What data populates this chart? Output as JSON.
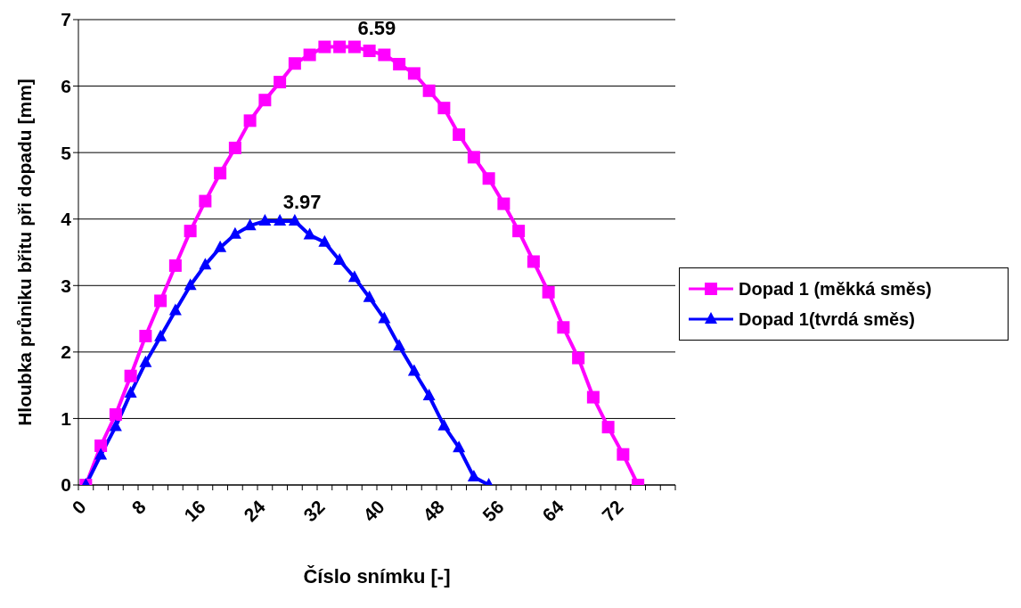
{
  "chart_data": {
    "type": "line",
    "xlabel": "Číslo snímku [-]",
    "ylabel": "Hloubka průniku břitu při dopadu [mm]",
    "xlim": [
      0,
      80
    ],
    "xticks": [
      0,
      {
        "value": 2,
        "label": null
      },
      {
        "value": 4,
        "label": null
      },
      {
        "value": 6,
        "label": null
      },
      8,
      {
        "value": 10,
        "label": null
      },
      {
        "value": 12,
        "label": null
      },
      {
        "value": 14,
        "label": null
      },
      16,
      {
        "value": 18,
        "label": null
      },
      {
        "value": 20,
        "label": null
      },
      {
        "value": 22,
        "label": null
      },
      24,
      {
        "value": 26,
        "label": null
      },
      {
        "value": 28,
        "label": null
      },
      {
        "value": 30,
        "label": null
      },
      32,
      {
        "value": 34,
        "label": null
      },
      {
        "value": 36,
        "label": null
      },
      {
        "value": 38,
        "label": null
      },
      40,
      {
        "value": 42,
        "label": null
      },
      {
        "value": 44,
        "label": null
      },
      {
        "value": 46,
        "label": null
      },
      48,
      {
        "value": 50,
        "label": null
      },
      {
        "value": 52,
        "label": null
      },
      {
        "value": 54,
        "label": null
      },
      56,
      {
        "value": 58,
        "label": null
      },
      {
        "value": 60,
        "label": null
      },
      {
        "value": 62,
        "label": null
      },
      64,
      {
        "value": 66,
        "label": null
      },
      {
        "value": 68,
        "label": null
      },
      {
        "value": 70,
        "label": null
      },
      72,
      {
        "value": 74,
        "label": null
      },
      {
        "value": 76,
        "label": null
      },
      {
        "value": 78,
        "label": null
      },
      {
        "value": 80,
        "label": null
      }
    ],
    "ylim": [
      0,
      7
    ],
    "yticks": [
      0,
      1,
      2,
      3,
      4,
      5,
      6,
      7
    ],
    "grid": "y",
    "legend": "right",
    "line_style": "solid",
    "series": [
      {
        "name": "Dopad 1 (měkká směs)",
        "color": "#ff00ff",
        "marker": "square",
        "x": [
          1,
          3,
          5,
          7,
          9,
          11,
          13,
          15,
          17,
          19,
          21,
          23,
          25,
          27,
          29,
          31,
          33,
          35,
          37,
          39,
          41,
          43,
          45,
          47,
          49,
          51,
          53,
          55,
          57,
          59,
          61,
          63,
          65,
          67,
          69,
          71,
          73,
          75
        ],
        "values": [
          0,
          0.59,
          1.06,
          1.64,
          2.24,
          2.77,
          3.3,
          3.82,
          4.27,
          4.69,
          5.07,
          5.48,
          5.79,
          6.06,
          6.34,
          6.47,
          6.59,
          6.59,
          6.59,
          6.53,
          6.47,
          6.33,
          6.19,
          5.93,
          5.67,
          5.27,
          4.93,
          4.61,
          4.23,
          3.82,
          3.36,
          2.9,
          2.37,
          1.91,
          1.32,
          0.87,
          0.46,
          0
        ]
      },
      {
        "name": "Dopad 1(tvrdá směs)",
        "color": "#0000ff",
        "marker": "triangle",
        "x": [
          1,
          3,
          5,
          7,
          9,
          11,
          13,
          15,
          17,
          19,
          21,
          23,
          25,
          27,
          29,
          31,
          33,
          35,
          37,
          39,
          41,
          43,
          45,
          47,
          49,
          51,
          53,
          55
        ],
        "values": [
          0,
          0.45,
          0.88,
          1.38,
          1.84,
          2.23,
          2.62,
          3.0,
          3.31,
          3.57,
          3.77,
          3.9,
          3.97,
          3.97,
          3.97,
          3.76,
          3.65,
          3.38,
          3.12,
          2.82,
          2.5,
          2.09,
          1.71,
          1.34,
          0.89,
          0.56,
          0.12,
          0
        ]
      }
    ],
    "annotations": [
      {
        "text": "6.59",
        "x": 37,
        "y": 6.59
      },
      {
        "text": "3.97",
        "x": 27,
        "y": 3.97
      }
    ]
  }
}
